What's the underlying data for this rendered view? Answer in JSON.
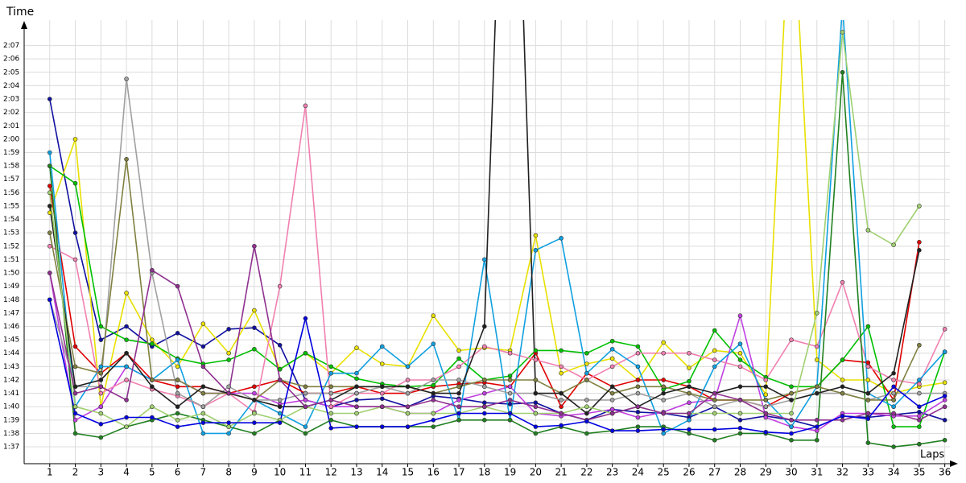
{
  "chart_data": {
    "type": "line",
    "y_label": "Time",
    "x_label": "Laps",
    "x": [
      1,
      2,
      3,
      4,
      5,
      6,
      7,
      8,
      9,
      10,
      11,
      12,
      13,
      14,
      15,
      16,
      17,
      18,
      19,
      20,
      21,
      22,
      23,
      24,
      25,
      26,
      27,
      28,
      29,
      30,
      31,
      32,
      33,
      34,
      35,
      36
    ],
    "xlim": [
      0,
      36.2
    ],
    "xticks": [
      1,
      2,
      3,
      4,
      5,
      6,
      7,
      8,
      9,
      10,
      11,
      12,
      13,
      14,
      15,
      16,
      17,
      18,
      19,
      20,
      21,
      22,
      23,
      24,
      25,
      26,
      27,
      28,
      29,
      30,
      31,
      32,
      33,
      34,
      35,
      36
    ],
    "ylim": [
      95.8,
      128.9
    ],
    "yticks": [
      {
        "value": 97,
        "label": "1:37"
      },
      {
        "value": 98,
        "label": "1:38"
      },
      {
        "value": 99,
        "label": "1:39"
      },
      {
        "value": 100,
        "label": "1:40"
      },
      {
        "value": 101,
        "label": "1:41"
      },
      {
        "value": 102,
        "label": "1:42"
      },
      {
        "value": 103,
        "label": "1:43"
      },
      {
        "value": 104,
        "label": "1:44"
      },
      {
        "value": 105,
        "label": "1:45"
      },
      {
        "value": 106,
        "label": "1:46"
      },
      {
        "value": 107,
        "label": "1:47"
      },
      {
        "value": 108,
        "label": "1:48"
      },
      {
        "value": 109,
        "label": "1:49"
      },
      {
        "value": 110,
        "label": "1:50"
      },
      {
        "value": 111,
        "label": "1:51"
      },
      {
        "value": 112,
        "label": "1:52"
      },
      {
        "value": 113,
        "label": "1:53"
      },
      {
        "value": 114,
        "label": "1:54"
      },
      {
        "value": 115,
        "label": "1:55"
      },
      {
        "value": 116,
        "label": "1:56"
      },
      {
        "value": 117,
        "label": "1:57"
      },
      {
        "value": 118,
        "label": "1:58"
      },
      {
        "value": 119,
        "label": "1:59"
      },
      {
        "value": 120,
        "label": "2:00"
      },
      {
        "value": 121,
        "label": "2:01"
      },
      {
        "value": 122,
        "label": "2:02"
      },
      {
        "value": 123,
        "label": "2:03"
      },
      {
        "value": 124,
        "label": "2:04"
      },
      {
        "value": 125,
        "label": "2:05"
      },
      {
        "value": 126,
        "label": "2:06"
      },
      {
        "value": 127,
        "label": "2:07"
      }
    ],
    "grid": true,
    "series": [
      {
        "color": "#1010a0",
        "values": [
          123,
          113,
          105,
          106,
          104.5,
          105.5,
          104.5,
          105.8,
          105.9,
          104.6,
          100.5,
          100,
          100.5,
          100.6,
          100,
          100.8,
          100.6,
          100.3,
          100.2,
          100.3,
          99.5,
          99,
          99.8,
          99.6,
          99.5,
          99.2,
          100,
          99,
          99.3,
          99,
          98.5,
          99.3,
          99.2,
          99.4,
          99.6,
          99
        ]
      },
      {
        "color": "#e8e000",
        "values": [
          114.5,
          120,
          100,
          108.5,
          105,
          103,
          106.2,
          104,
          107.2,
          102.8,
          104,
          102.5,
          104.4,
          103.2,
          103,
          106.8,
          104.2,
          104.4,
          104.2,
          112.8,
          102.5,
          103.2,
          103.6,
          102,
          104.8,
          102.9,
          104.2,
          104,
          100.9,
          140,
          103.5,
          102,
          102,
          101,
          101.5,
          101.8
        ]
      },
      {
        "color": "#e00000",
        "values": [
          116.5,
          104.5,
          102.5,
          104,
          102,
          101.5,
          101.5,
          101,
          101.5,
          102,
          101,
          101,
          101.5,
          101,
          101,
          101.5,
          101.7,
          101.8,
          101.5,
          104,
          100,
          102.5,
          101.5,
          102,
          102,
          101.5,
          100.5,
          100.5,
          100,
          101,
          101.5,
          103.5,
          103.3,
          100.5,
          112.3,
          null
        ]
      },
      {
        "color": "#00c000",
        "values": [
          118,
          116.7,
          106,
          105,
          104.7,
          103.6,
          103.2,
          103.5,
          104.3,
          102.8,
          104,
          103,
          102.1,
          101.7,
          101.5,
          101.6,
          103.6,
          102,
          102.3,
          104.2,
          104.2,
          104,
          104.9,
          104.5,
          101.3,
          101.9,
          105.7,
          103.5,
          102.2,
          101.5,
          101.5,
          103.5,
          106,
          98.5,
          98.5,
          104.1
        ]
      },
      {
        "color": "#c040e0",
        "values": [
          110,
          99,
          100,
          103,
          102,
          102,
          101,
          101,
          101,
          100.2,
          100.5,
          100,
          100,
          100,
          99.5,
          99.5,
          100.5,
          101,
          101.5,
          99.5,
          99.3,
          99.5,
          99.8,
          99.2,
          99.6,
          100.3,
          100.5,
          106.8,
          99.2,
          98.5,
          98.2,
          99.5,
          99.5,
          99.3,
          99.3,
          100.5
        ]
      },
      {
        "color": "#f080b0",
        "values": [
          112,
          111,
          101,
          102,
          101.3,
          100.8,
          100,
          101,
          99.6,
          109,
          122.5,
          100,
          101,
          101,
          102,
          102,
          103,
          104.5,
          104,
          103.5,
          103,
          102,
          103,
          104,
          104,
          104,
          103.5,
          103,
          102,
          105,
          104.5,
          109.3,
          103,
          102,
          101.7,
          105.8
        ]
      },
      {
        "color": "#10a0e0",
        "values": [
          119,
          100,
          103,
          103,
          102,
          103.5,
          98,
          98,
          100.5,
          99.5,
          98.5,
          102.5,
          102.5,
          104.5,
          103,
          104.7,
          99,
          111,
          99,
          111.7,
          112.6,
          102.5,
          104.3,
          103,
          98,
          99,
          103,
          104.7,
          100.5,
          98.5,
          101.5,
          130,
          101,
          100,
          102,
          104.1
        ]
      },
      {
        "color": "#208020",
        "values": [
          118,
          98,
          97.7,
          98.5,
          99,
          99.5,
          99,
          98.5,
          98,
          99,
          98,
          99,
          98.5,
          98.5,
          98.5,
          98.5,
          99,
          99,
          99,
          98,
          98.5,
          98,
          98.2,
          98.5,
          98.5,
          98,
          97.5,
          98,
          98,
          97.5,
          97.5,
          125,
          97.3,
          97,
          97.2,
          97.5
        ]
      },
      {
        "color": "#a0a0a0",
        "values": [
          108,
          101.5,
          101.5,
          124.5,
          110,
          101,
          100,
          101.5,
          100.5,
          100.5,
          101,
          101,
          101,
          101.5,
          101,
          102,
          102,
          101.5,
          101,
          101,
          100.5,
          100.5,
          100.5,
          101,
          100.5,
          101,
          100,
          100.5,
          100,
          100.5,
          101,
          101,
          100.5,
          101,
          101,
          101
        ]
      },
      {
        "color": "#808040",
        "values": [
          113,
          103,
          102.5,
          118.5,
          102,
          102,
          101,
          101,
          100.5,
          102,
          101.5,
          101.5,
          101.5,
          101.5,
          101.5,
          101,
          101.5,
          102,
          102,
          102,
          101,
          102,
          101,
          101.5,
          101.5,
          101,
          100.5,
          100.5,
          100.5,
          101,
          101.5,
          101,
          100.5,
          100.5,
          104.6,
          null
        ]
      },
      {
        "color": "#202020",
        "values": [
          115,
          101.5,
          102,
          104,
          101.5,
          100,
          101.5,
          101,
          100.5,
          100,
          100,
          100.5,
          101.5,
          101.5,
          101.5,
          101,
          101,
          106,
          160,
          101,
          101,
          99.5,
          101.5,
          100,
          101,
          101.5,
          101,
          101.5,
          101.5,
          100.5,
          101,
          101.5,
          101,
          102.5,
          111.7,
          null
        ]
      },
      {
        "color": "#a0d070",
        "values": [
          116,
          100,
          99.5,
          98.5,
          100,
          99,
          99.5,
          98.5,
          99.5,
          99,
          100,
          99.5,
          99.5,
          100,
          99.5,
          99.5,
          99.5,
          100,
          99.5,
          99.5,
          99.5,
          100,
          99.5,
          100,
          99.5,
          99.5,
          99.5,
          99.5,
          99.5,
          99.5,
          107,
          128,
          113.2,
          112.1,
          115,
          null
        ]
      },
      {
        "color": "#903090",
        "values": [
          110,
          101,
          101.5,
          100.5,
          110.2,
          109,
          103,
          101,
          112,
          102,
          100,
          100.5,
          100,
          100,
          100,
          100.5,
          100,
          100,
          100.5,
          100,
          99.5,
          99,
          99.5,
          100,
          99.5,
          99.5,
          101,
          100.5,
          99.5,
          99,
          99,
          99,
          99.5,
          99.5,
          99,
          100
        ]
      },
      {
        "color": "#0000e0",
        "values": [
          108,
          99.5,
          98.7,
          99.2,
          99.2,
          98.5,
          98.8,
          98.8,
          98.8,
          98.8,
          106.6,
          98.4,
          98.5,
          98.5,
          98.5,
          99,
          99.5,
          99.5,
          99.5,
          98.5,
          98.6,
          98.9,
          98.2,
          98.2,
          98.3,
          98.3,
          98.3,
          98.4,
          98.1,
          98,
          98.5,
          99.3,
          99.1,
          101.5,
          100,
          100.8
        ]
      }
    ]
  }
}
